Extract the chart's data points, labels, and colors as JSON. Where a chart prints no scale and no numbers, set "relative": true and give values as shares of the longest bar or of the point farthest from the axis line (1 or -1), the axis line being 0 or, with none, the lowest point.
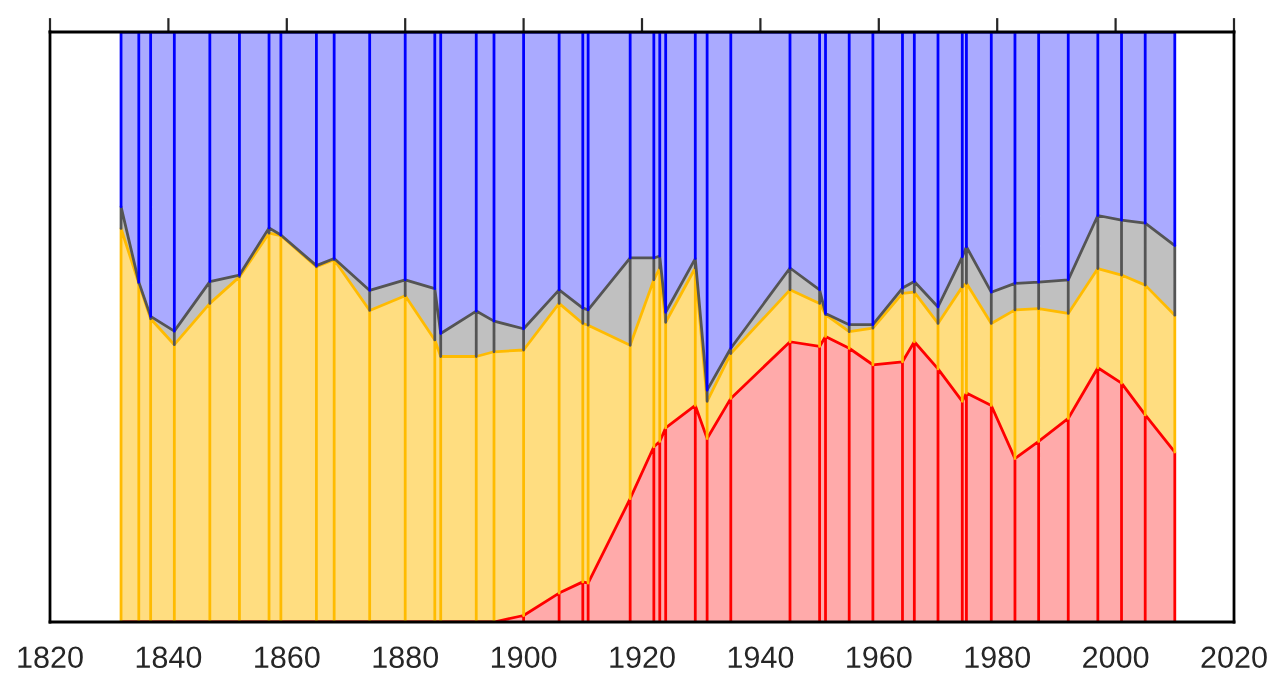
{
  "chart_data": {
    "type": "area",
    "stacked": true,
    "relative": true,
    "tick_labels": "x",
    "x": [
      1832,
      1835,
      1837,
      1841,
      1847,
      1852,
      1857,
      1859,
      1865,
      1868,
      1874,
      1880,
      1885,
      1886,
      1892,
      1895,
      1900,
      1906,
      1910,
      1910.9,
      1918,
      1922,
      1923,
      1924,
      1929,
      1931,
      1935,
      1945,
      1950,
      1951,
      1955,
      1959,
      1964,
      1966,
      1970,
      1974.1,
      1974.8,
      1979,
      1983,
      1987,
      1992,
      1997,
      2001,
      2005,
      2010
    ],
    "xlim": [
      1820,
      2020
    ],
    "xticks": [
      1820,
      1840,
      1860,
      1880,
      1900,
      1920,
      1940,
      1960,
      1980,
      2000,
      2020
    ],
    "series": [
      {
        "color": "#ffaaaa",
        "values": [
          0,
          0,
          0,
          0,
          0,
          0,
          0,
          0,
          0,
          0,
          0,
          0,
          0,
          0,
          0,
          0,
          0.011,
          0.049,
          0.068,
          0.066,
          0.209,
          0.297,
          0.306,
          0.329,
          0.367,
          0.311,
          0.379,
          0.475,
          0.467,
          0.484,
          0.464,
          0.436,
          0.441,
          0.475,
          0.429,
          0.374,
          0.388,
          0.367,
          0.277,
          0.306,
          0.345,
          0.431,
          0.405,
          0.351,
          0.288
        ]
      },
      {
        "color": "#ffdd80",
        "values": [
          0.667,
          0.574,
          0.514,
          0.47,
          0.54,
          0.585,
          0.659,
          0.655,
          0.602,
          0.614,
          0.528,
          0.553,
          0.478,
          0.45,
          0.45,
          0.458,
          0.45,
          0.491,
          0.438,
          0.437,
          0.26,
          0.283,
          0.294,
          0.179,
          0.233,
          0.063,
          0.076,
          0.088,
          0.073,
          0.037,
          0.028,
          0.062,
          0.116,
          0.084,
          0.077,
          0.194,
          0.186,
          0.139,
          0.252,
          0.225,
          0.178,
          0.168,
          0.183,
          0.22,
          0.232
        ]
      },
      {
        "color": "#c0c0c0",
        "values": [
          0.037,
          0.002,
          0.004,
          0.023,
          0.037,
          0.003,
          0.009,
          0.001,
          0.002,
          0.002,
          0.034,
          0.027,
          0.087,
          0.039,
          0.077,
          0.052,
          0.036,
          0.023,
          0.026,
          0.026,
          0.148,
          0.037,
          0.02,
          0.017,
          0.016,
          0.019,
          0.009,
          0.037,
          0.023,
          0.002,
          0.012,
          0.006,
          0.009,
          0.018,
          0.028,
          0.051,
          0.062,
          0.053,
          0.045,
          0.045,
          0.057,
          0.09,
          0.093,
          0.105,
          0.118
        ]
      },
      {
        "color": "#aaaaff",
        "values": [
          0.296,
          0.424,
          0.482,
          0.507,
          0.423,
          0.412,
          0.332,
          0.344,
          0.396,
          0.384,
          0.438,
          0.42,
          0.435,
          0.511,
          0.473,
          0.49,
          0.503,
          0.437,
          0.468,
          0.471,
          0.383,
          0.383,
          0.38,
          0.475,
          0.384,
          0.607,
          0.536,
          0.4,
          0.437,
          0.477,
          0.496,
          0.496,
          0.434,
          0.423,
          0.466,
          0.381,
          0.364,
          0.441,
          0.426,
          0.424,
          0.42,
          0.311,
          0.319,
          0.324,
          0.362
        ]
      }
    ]
  }
}
